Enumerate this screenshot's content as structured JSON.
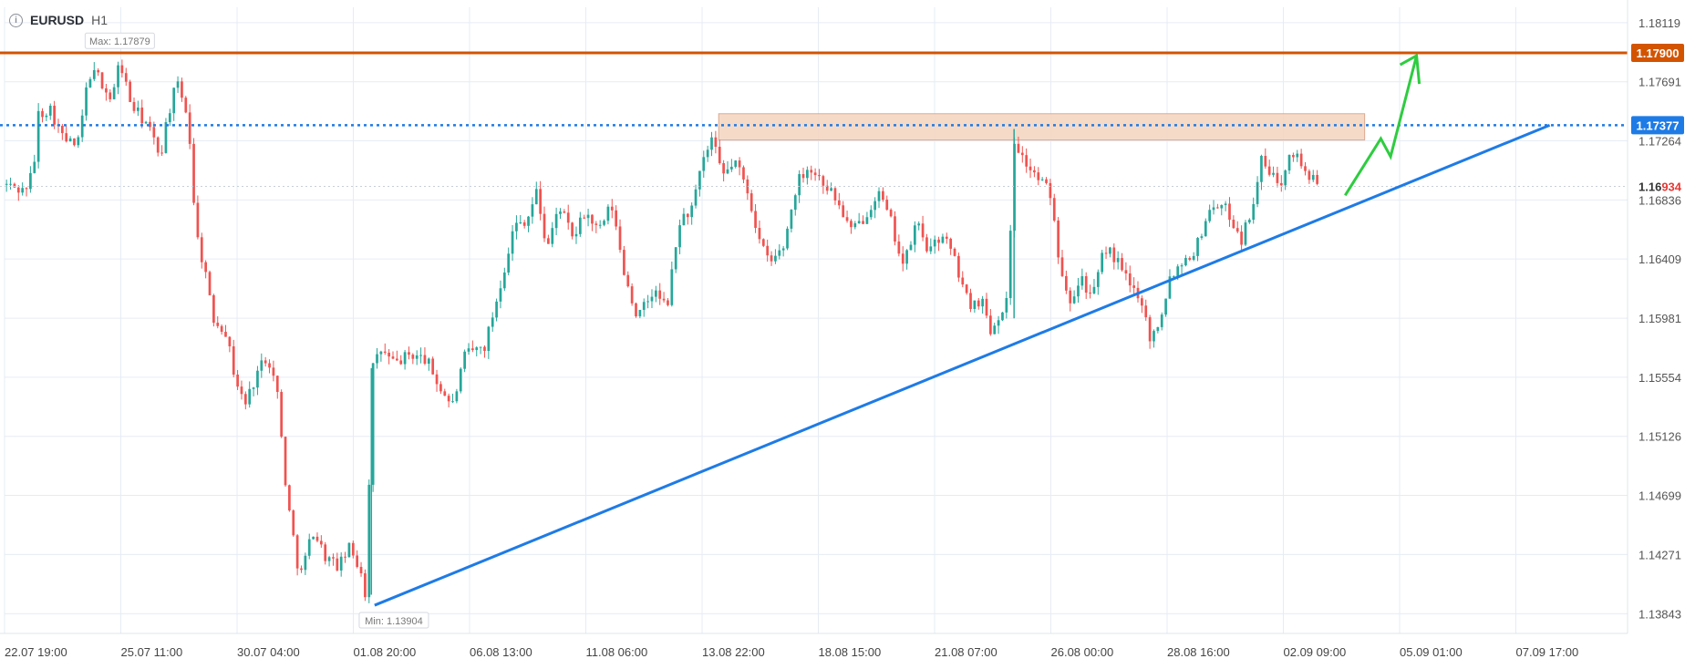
{
  "header": {
    "symbol": "EURUSD",
    "timeframe": "H1"
  },
  "colors": {
    "up": "#26a69a",
    "down": "#ef5350",
    "trendline": "#1e7be6",
    "resistance": "#d35400",
    "dotted": "#1e7be6",
    "zone_fill": "#f5d6c3",
    "zone_stroke": "#d9a184",
    "projection": "#2ecc40",
    "grid": "#e6ecf5"
  },
  "chart_data": {
    "type": "candlestick",
    "ylim": [
      1.137,
      1.1823
    ],
    "y_ticks": [
      "1.18119",
      "1.17691",
      "1.17264",
      "1.16836",
      "1.16409",
      "1.15981",
      "1.15554",
      "1.15126",
      "1.14699",
      "1.14271",
      "1.13843"
    ],
    "x_ticks": [
      "22.07 19:00",
      "25.07 11:00",
      "30.07 04:00",
      "01.08 20:00",
      "06.08 13:00",
      "11.08 06:00",
      "13.08 22:00",
      "18.08 15:00",
      "21.08 07:00",
      "26.08 00:00",
      "28.08 16:00",
      "02.09 09:00",
      "05.09 01:00",
      "07.09 17:00"
    ],
    "key_points": [
      {
        "t": 0.0,
        "p": 1.1695
      },
      {
        "t": 0.012,
        "p": 1.169
      },
      {
        "t": 0.018,
        "p": 1.1705
      },
      {
        "t": 0.02,
        "p": 1.1745
      },
      {
        "t": 0.028,
        "p": 1.175
      },
      {
        "t": 0.036,
        "p": 1.1728
      },
      {
        "t": 0.045,
        "p": 1.1722
      },
      {
        "t": 0.052,
        "p": 1.1775
      },
      {
        "t": 0.058,
        "p": 1.1773
      },
      {
        "t": 0.066,
        "p": 1.1755
      },
      {
        "t": 0.071,
        "p": 1.1785
      },
      {
        "t": 0.078,
        "p": 1.1752
      },
      {
        "t": 0.088,
        "p": 1.1738
      },
      {
        "t": 0.096,
        "p": 1.1715
      },
      {
        "t": 0.1,
        "p": 1.1742
      },
      {
        "t": 0.106,
        "p": 1.1768
      },
      {
        "t": 0.113,
        "p": 1.1745
      },
      {
        "t": 0.118,
        "p": 1.166
      },
      {
        "t": 0.124,
        "p": 1.163
      },
      {
        "t": 0.128,
        "p": 1.1598
      },
      {
        "t": 0.136,
        "p": 1.159
      },
      {
        "t": 0.142,
        "p": 1.1555
      },
      {
        "t": 0.148,
        "p": 1.1535
      },
      {
        "t": 0.156,
        "p": 1.156
      },
      {
        "t": 0.162,
        "p": 1.1572
      },
      {
        "t": 0.168,
        "p": 1.1545
      },
      {
        "t": 0.174,
        "p": 1.1468
      },
      {
        "t": 0.182,
        "p": 1.141
      },
      {
        "t": 0.19,
        "p": 1.1445
      },
      {
        "t": 0.198,
        "p": 1.1425
      },
      {
        "t": 0.206,
        "p": 1.1418
      },
      {
        "t": 0.212,
        "p": 1.1432
      },
      {
        "t": 0.22,
        "p": 1.1415
      },
      {
        "t": 0.223,
        "p": 1.1392
      },
      {
        "t": 0.226,
        "p": 1.156
      },
      {
        "t": 0.232,
        "p": 1.1575
      },
      {
        "t": 0.24,
        "p": 1.1565
      },
      {
        "t": 0.25,
        "p": 1.1572
      },
      {
        "t": 0.26,
        "p": 1.1568
      },
      {
        "t": 0.268,
        "p": 1.1548
      },
      {
        "t": 0.276,
        "p": 1.1535
      },
      {
        "t": 0.284,
        "p": 1.1572
      },
      {
        "t": 0.296,
        "p": 1.1578
      },
      {
        "t": 0.306,
        "p": 1.1625
      },
      {
        "t": 0.314,
        "p": 1.1665
      },
      {
        "t": 0.322,
        "p": 1.167
      },
      {
        "t": 0.328,
        "p": 1.169
      },
      {
        "t": 0.334,
        "p": 1.1648
      },
      {
        "t": 0.342,
        "p": 1.168
      },
      {
        "t": 0.35,
        "p": 1.1655
      },
      {
        "t": 0.358,
        "p": 1.1675
      },
      {
        "t": 0.366,
        "p": 1.166
      },
      {
        "t": 0.374,
        "p": 1.168
      },
      {
        "t": 0.382,
        "p": 1.163
      },
      {
        "t": 0.39,
        "p": 1.1598
      },
      {
        "t": 0.4,
        "p": 1.1618
      },
      {
        "t": 0.408,
        "p": 1.1605
      },
      {
        "t": 0.416,
        "p": 1.1668
      },
      {
        "t": 0.424,
        "p": 1.1678
      },
      {
        "t": 0.43,
        "p": 1.171
      },
      {
        "t": 0.436,
        "p": 1.1728
      },
      {
        "t": 0.442,
        "p": 1.17
      },
      {
        "t": 0.45,
        "p": 1.1712
      },
      {
        "t": 0.458,
        "p": 1.169
      },
      {
        "t": 0.466,
        "p": 1.165
      },
      {
        "t": 0.472,
        "p": 1.1638
      },
      {
        "t": 0.48,
        "p": 1.165
      },
      {
        "t": 0.488,
        "p": 1.1695
      },
      {
        "t": 0.494,
        "p": 1.1708
      },
      {
        "t": 0.502,
        "p": 1.17
      },
      {
        "t": 0.508,
        "p": 1.1692
      },
      {
        "t": 0.514,
        "p": 1.168
      },
      {
        "t": 0.522,
        "p": 1.166
      },
      {
        "t": 0.53,
        "p": 1.1672
      },
      {
        "t": 0.538,
        "p": 1.169
      },
      {
        "t": 0.546,
        "p": 1.1668
      },
      {
        "t": 0.554,
        "p": 1.1635
      },
      {
        "t": 0.562,
        "p": 1.1668
      },
      {
        "t": 0.57,
        "p": 1.1645
      },
      {
        "t": 0.578,
        "p": 1.166
      },
      {
        "t": 0.586,
        "p": 1.1638
      },
      {
        "t": 0.594,
        "p": 1.1608
      },
      {
        "t": 0.602,
        "p": 1.1612
      },
      {
        "t": 0.608,
        "p": 1.1588
      },
      {
        "t": 0.614,
        "p": 1.1605
      },
      {
        "t": 0.618,
        "p": 1.161
      },
      {
        "t": 0.622,
        "p": 1.1728
      },
      {
        "t": 0.628,
        "p": 1.1712
      },
      {
        "t": 0.636,
        "p": 1.17
      },
      {
        "t": 0.644,
        "p": 1.169
      },
      {
        "t": 0.65,
        "p": 1.164
      },
      {
        "t": 0.656,
        "p": 1.1612
      },
      {
        "t": 0.664,
        "p": 1.1628
      },
      {
        "t": 0.67,
        "p": 1.161
      },
      {
        "t": 0.678,
        "p": 1.165
      },
      {
        "t": 0.686,
        "p": 1.1638
      },
      {
        "t": 0.694,
        "p": 1.162
      },
      {
        "t": 0.7,
        "p": 1.1615
      },
      {
        "t": 0.706,
        "p": 1.1582
      },
      {
        "t": 0.712,
        "p": 1.1598
      },
      {
        "t": 0.718,
        "p": 1.1628
      },
      {
        "t": 0.726,
        "p": 1.164
      },
      {
        "t": 0.734,
        "p": 1.1648
      },
      {
        "t": 0.74,
        "p": 1.167
      },
      {
        "t": 0.746,
        "p": 1.1682
      },
      {
        "t": 0.754,
        "p": 1.1675
      },
      {
        "t": 0.762,
        "p": 1.1655
      },
      {
        "t": 0.768,
        "p": 1.1675
      },
      {
        "t": 0.774,
        "p": 1.1712
      },
      {
        "t": 0.78,
        "p": 1.1702
      },
      {
        "t": 0.786,
        "p": 1.1695
      },
      {
        "t": 0.792,
        "p": 1.1722
      },
      {
        "t": 0.798,
        "p": 1.1712
      },
      {
        "t": 0.804,
        "p": 1.17
      },
      {
        "t": 0.81,
        "p": 1.1693
      }
    ],
    "annotations": {
      "max_label": "Max: 1.17879",
      "max": {
        "t": 0.071,
        "p": 1.17879
      },
      "min_label": "Min: 1.13904",
      "min": {
        "t": 0.223,
        "p": 1.13904
      },
      "resistance_price_label": "1.17900",
      "resistance_price": 1.179,
      "dotted_price_label": "1.17377",
      "dotted_price": 1.17377,
      "current_price_main": "1.16",
      "current_price_accent": "934",
      "current_price": 1.16934,
      "zone": {
        "t0": 0.44,
        "t1": 0.838,
        "p0": 1.1727,
        "p1": 1.1746
      },
      "trendline": {
        "t0": 0.228,
        "p0": 1.13904,
        "t1": 0.952,
        "p1": 1.17377
      },
      "projection": [
        {
          "t": 0.826,
          "p": 1.1687
        },
        {
          "t": 0.848,
          "p": 1.1728
        },
        {
          "t": 0.854,
          "p": 1.1715
        },
        {
          "t": 0.87,
          "p": 1.1788
        }
      ]
    }
  }
}
